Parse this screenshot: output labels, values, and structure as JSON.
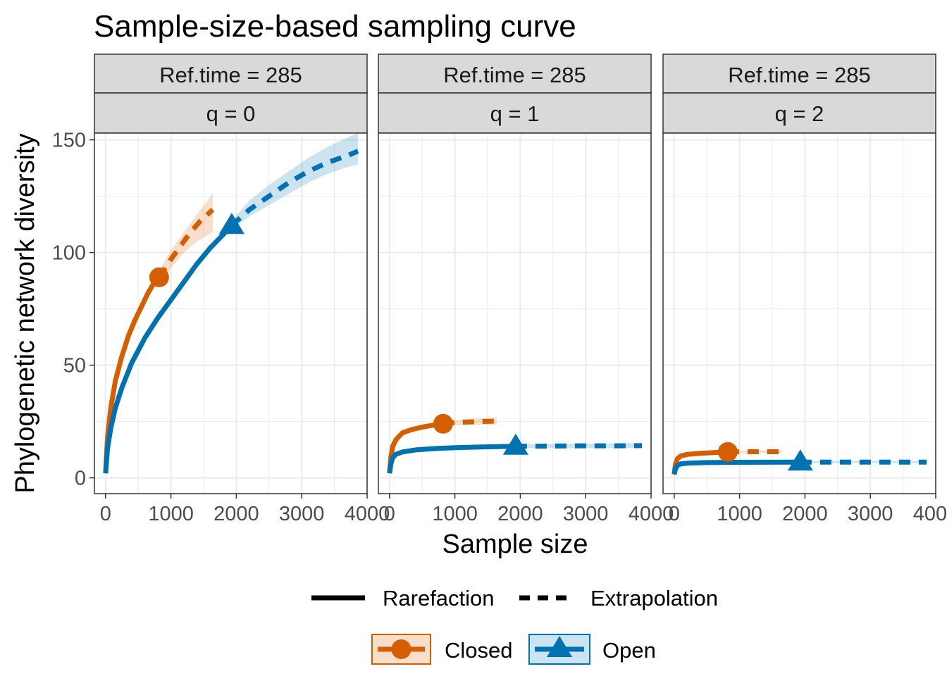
{
  "chart_data": {
    "type": "line",
    "title": "Sample-size-based sampling curve",
    "xlabel": "Sample size",
    "ylabel": "Phylogenetic network diversity",
    "xlim": [
      -170,
      4000
    ],
    "ylim": [
      -7,
      153
    ],
    "x_ticks": [
      0,
      1000,
      2000,
      3000,
      4000
    ],
    "y_ticks": [
      0,
      50,
      100,
      150
    ],
    "x_tick_labels": [
      "0",
      "1000",
      "2000",
      "3000",
      "4000"
    ],
    "y_tick_labels": [
      "0",
      "50",
      "100",
      "150"
    ],
    "grid": true,
    "colors": {
      "Closed": "#D55E00",
      "Open": "#0072B2",
      "strip_fill": "#D9D9D9",
      "grid": "#EBEBEB"
    },
    "legend": {
      "placement": "bottom",
      "linetype_items": [
        {
          "label": "Rarefaction",
          "style": "solid"
        },
        {
          "label": "Extrapolation",
          "style": "dashed"
        }
      ],
      "group_items": [
        {
          "label": "Closed",
          "marker": "circle"
        },
        {
          "label": "Open",
          "marker": "triangle"
        }
      ]
    },
    "panels": [
      {
        "strip_top": "Ref.time = 285",
        "strip_bottom": "q = 0",
        "series": [
          {
            "name": "Closed",
            "reference": {
              "x": 820,
              "y": 89
            },
            "rarefaction": [
              [
                1,
                2
              ],
              [
                30,
                18
              ],
              [
                80,
                31
              ],
              [
                150,
                43
              ],
              [
                250,
                54
              ],
              [
                350,
                63
              ],
              [
                450,
                70
              ],
              [
                550,
                76
              ],
              [
                650,
                82
              ],
              [
                750,
                87
              ],
              [
                820,
                89
              ]
            ],
            "extrapolation": [
              [
                820,
                89
              ],
              [
                1000,
                97
              ],
              [
                1150,
                103
              ],
              [
                1300,
                109
              ],
              [
                1450,
                114
              ],
              [
                1640,
                119
              ]
            ],
            "band": [
              [
                820,
                86,
                92
              ],
              [
                1000,
                93,
                101
              ],
              [
                1200,
                100,
                109
              ],
              [
                1400,
                105,
                117
              ],
              [
                1640,
                109,
                126
              ]
            ]
          },
          {
            "name": "Open",
            "reference": {
              "x": 1930,
              "y": 112
            },
            "rarefaction": [
              [
                1,
                2
              ],
              [
                30,
                13
              ],
              [
                80,
                22
              ],
              [
                150,
                31
              ],
              [
                250,
                40
              ],
              [
                400,
                51
              ],
              [
                600,
                62
              ],
              [
                800,
                71
              ],
              [
                1000,
                79
              ],
              [
                1200,
                87
              ],
              [
                1400,
                95
              ],
              [
                1600,
                102
              ],
              [
                1800,
                108
              ],
              [
                1930,
                112
              ]
            ],
            "extrapolation": [
              [
                1930,
                112
              ],
              [
                2200,
                119
              ],
              [
                2500,
                125
              ],
              [
                2800,
                131
              ],
              [
                3100,
                136
              ],
              [
                3400,
                140
              ],
              [
                3700,
                143
              ],
              [
                3860,
                145
              ]
            ],
            "band": [
              [
                1930,
                110,
                114
              ],
              [
                2200,
                116,
                123
              ],
              [
                2500,
                121,
                130
              ],
              [
                2800,
                126,
                136
              ],
              [
                3100,
                131,
                142
              ],
              [
                3400,
                135,
                147
              ],
              [
                3700,
                138,
                151
              ],
              [
                3860,
                139,
                153
              ]
            ]
          }
        ]
      },
      {
        "strip_top": "Ref.time = 285",
        "strip_bottom": "q = 1",
        "series": [
          {
            "name": "Closed",
            "reference": {
              "x": 820,
              "y": 24
            },
            "rarefaction": [
              [
                1,
                2
              ],
              [
                20,
                9
              ],
              [
                50,
                14
              ],
              [
                100,
                17
              ],
              [
                200,
                20
              ],
              [
                350,
                21.5
              ],
              [
                500,
                22.5
              ],
              [
                650,
                23.3
              ],
              [
                820,
                24
              ]
            ],
            "extrapolation": [
              [
                820,
                24
              ],
              [
                1000,
                24.5
              ],
              [
                1200,
                24.8
              ],
              [
                1400,
                25
              ],
              [
                1640,
                25.2
              ]
            ],
            "band": [
              [
                820,
                23,
                25
              ],
              [
                1200,
                23.5,
                26.2
              ],
              [
                1640,
                23.7,
                26.8
              ]
            ]
          },
          {
            "name": "Open",
            "reference": {
              "x": 1930,
              "y": 14
            },
            "rarefaction": [
              [
                1,
                2
              ],
              [
                20,
                6
              ],
              [
                50,
                9
              ],
              [
                100,
                10.5
              ],
              [
                200,
                11.5
              ],
              [
                400,
                12.4
              ],
              [
                700,
                13
              ],
              [
                1000,
                13.4
              ],
              [
                1400,
                13.7
              ],
              [
                1930,
                14
              ]
            ],
            "extrapolation": [
              [
                1930,
                14
              ],
              [
                2400,
                14.1
              ],
              [
                2900,
                14.2
              ],
              [
                3400,
                14.2
              ],
              [
                3860,
                14.3
              ]
            ],
            "band": [
              [
                1930,
                13.2,
                14.8
              ],
              [
                2900,
                13.2,
                15.2
              ],
              [
                3860,
                13.2,
                15.4
              ]
            ]
          }
        ]
      },
      {
        "strip_top": "Ref.time = 285",
        "strip_bottom": "q = 2",
        "series": [
          {
            "name": "Closed",
            "reference": {
              "x": 820,
              "y": 11.5
            },
            "rarefaction": [
              [
                1,
                2
              ],
              [
                20,
                6
              ],
              [
                50,
                8.5
              ],
              [
                100,
                9.7
              ],
              [
                200,
                10.4
              ],
              [
                400,
                10.9
              ],
              [
                600,
                11.2
              ],
              [
                820,
                11.5
              ]
            ],
            "extrapolation": [
              [
                820,
                11.5
              ],
              [
                1100,
                11.6
              ],
              [
                1400,
                11.6
              ],
              [
                1640,
                11.6
              ]
            ],
            "band": [
              [
                820,
                11,
                12
              ],
              [
                1640,
                11,
                12.3
              ]
            ]
          },
          {
            "name": "Open",
            "reference": {
              "x": 1930,
              "y": 7
            },
            "rarefaction": [
              [
                1,
                1.5
              ],
              [
                20,
                4
              ],
              [
                50,
                5.5
              ],
              [
                100,
                6.2
              ],
              [
                200,
                6.5
              ],
              [
                500,
                6.8
              ],
              [
                1000,
                6.9
              ],
              [
                1930,
                7
              ]
            ],
            "extrapolation": [
              [
                1930,
                7
              ],
              [
                2600,
                7
              ],
              [
                3200,
                7
              ],
              [
                3860,
                7
              ]
            ],
            "band": [
              [
                1930,
                6.6,
                7.4
              ],
              [
                3860,
                6.5,
                7.6
              ]
            ]
          }
        ]
      }
    ]
  }
}
